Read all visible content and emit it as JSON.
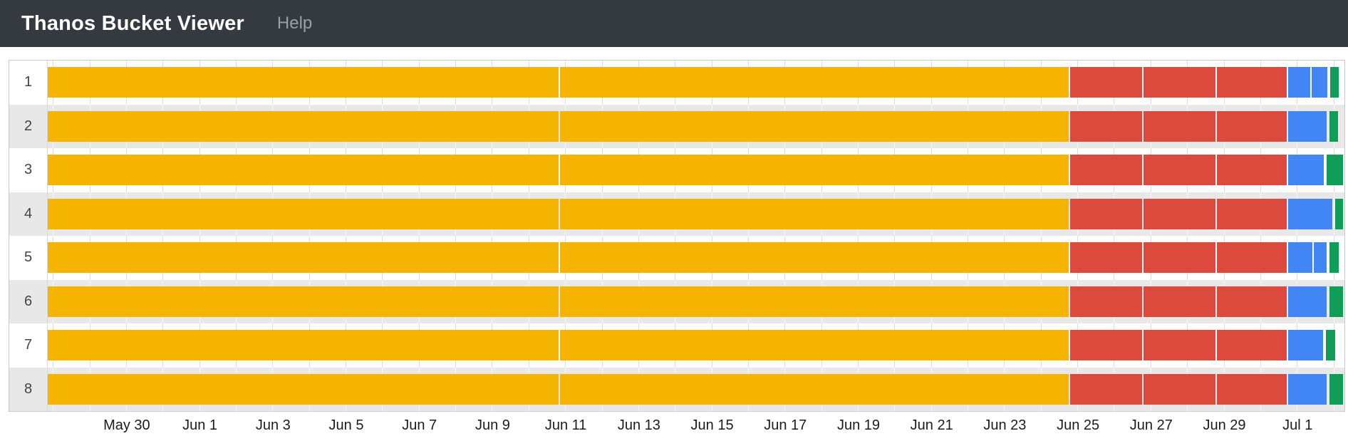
{
  "header": {
    "title": "Thanos Bucket Viewer",
    "help_label": "Help"
  },
  "colors": {
    "header_bg": "#343a40",
    "brand_text": "#ffffff",
    "help_text": "#9aa0a6",
    "row_bg": "#ffffff",
    "row_alt_bg": "#e8e8e8",
    "grid_on_light": "#dcdcdc",
    "grid_on_dark": "#f7f7f7",
    "panel_border": "#c9c9c9",
    "palette": {
      "amber": "#f4b400",
      "red": "#dc4a3d",
      "blue": "#4285f4",
      "green": "#0f9d58"
    }
  },
  "chart_data": {
    "type": "timeline",
    "title": "",
    "xlabel": "",
    "ylabel": "",
    "legend": null,
    "grid": true,
    "x_axis": {
      "unit": "days",
      "domain_days": [
        0,
        35.44
      ],
      "tick_interval_days": 2,
      "grid_interval_days": 1,
      "grid_start_day": 0.14,
      "ticks": [
        {
          "label": "May 30",
          "day": 2.14
        },
        {
          "label": "Jun 1",
          "day": 4.14
        },
        {
          "label": "Jun 3",
          "day": 6.14
        },
        {
          "label": "Jun 5",
          "day": 8.14
        },
        {
          "label": "Jun 7",
          "day": 10.14
        },
        {
          "label": "Jun 9",
          "day": 12.14
        },
        {
          "label": "Jun 11",
          "day": 14.14
        },
        {
          "label": "Jun 13",
          "day": 16.14
        },
        {
          "label": "Jun 15",
          "day": 18.14
        },
        {
          "label": "Jun 17",
          "day": 20.14
        },
        {
          "label": "Jun 19",
          "day": 22.14
        },
        {
          "label": "Jun 21",
          "day": 24.14
        },
        {
          "label": "Jun 23",
          "day": 26.14
        },
        {
          "label": "Jun 25",
          "day": 28.14
        },
        {
          "label": "Jun 27",
          "day": 30.14
        },
        {
          "label": "Jun 29",
          "day": 32.14
        },
        {
          "label": "Jul 1",
          "day": 34.14
        }
      ]
    },
    "rows": [
      {
        "label": "1",
        "segments": [
          {
            "start": 0,
            "end": 14.0,
            "color": "amber"
          },
          {
            "start": 14.0,
            "end": 27.95,
            "color": "amber"
          },
          {
            "start": 27.95,
            "end": 29.95,
            "color": "red"
          },
          {
            "start": 29.95,
            "end": 31.95,
            "color": "red"
          },
          {
            "start": 31.95,
            "end": 33.9,
            "color": "red"
          },
          {
            "start": 33.9,
            "end": 34.55,
            "color": "blue"
          },
          {
            "start": 34.55,
            "end": 35.02,
            "color": "blue"
          },
          {
            "start": 35.06,
            "end": 35.32,
            "color": "green"
          }
        ]
      },
      {
        "label": "2",
        "segments": [
          {
            "start": 0,
            "end": 14.0,
            "color": "amber"
          },
          {
            "start": 14.0,
            "end": 27.95,
            "color": "amber"
          },
          {
            "start": 27.95,
            "end": 29.95,
            "color": "red"
          },
          {
            "start": 29.95,
            "end": 31.95,
            "color": "red"
          },
          {
            "start": 31.95,
            "end": 33.9,
            "color": "red"
          },
          {
            "start": 33.9,
            "end": 35.0,
            "color": "blue"
          },
          {
            "start": 35.04,
            "end": 35.3,
            "color": "green"
          }
        ]
      },
      {
        "label": "3",
        "segments": [
          {
            "start": 0,
            "end": 14.0,
            "color": "amber"
          },
          {
            "start": 14.0,
            "end": 27.95,
            "color": "amber"
          },
          {
            "start": 27.95,
            "end": 29.95,
            "color": "red"
          },
          {
            "start": 29.95,
            "end": 31.95,
            "color": "red"
          },
          {
            "start": 31.95,
            "end": 33.9,
            "color": "red"
          },
          {
            "start": 33.9,
            "end": 34.92,
            "color": "blue"
          },
          {
            "start": 34.96,
            "end": 35.44,
            "color": "green"
          }
        ]
      },
      {
        "label": "4",
        "segments": [
          {
            "start": 0,
            "end": 14.0,
            "color": "amber"
          },
          {
            "start": 14.0,
            "end": 27.95,
            "color": "amber"
          },
          {
            "start": 27.95,
            "end": 29.95,
            "color": "red"
          },
          {
            "start": 29.95,
            "end": 31.95,
            "color": "red"
          },
          {
            "start": 31.95,
            "end": 33.9,
            "color": "red"
          },
          {
            "start": 33.9,
            "end": 35.14,
            "color": "blue"
          },
          {
            "start": 35.18,
            "end": 35.44,
            "color": "green"
          }
        ]
      },
      {
        "label": "5",
        "segments": [
          {
            "start": 0,
            "end": 14.0,
            "color": "amber"
          },
          {
            "start": 14.0,
            "end": 27.95,
            "color": "amber"
          },
          {
            "start": 27.95,
            "end": 29.95,
            "color": "red"
          },
          {
            "start": 29.95,
            "end": 31.95,
            "color": "red"
          },
          {
            "start": 31.95,
            "end": 33.9,
            "color": "red"
          },
          {
            "start": 33.9,
            "end": 34.6,
            "color": "blue"
          },
          {
            "start": 34.6,
            "end": 35.0,
            "color": "blue"
          },
          {
            "start": 35.04,
            "end": 35.32,
            "color": "green"
          }
        ]
      },
      {
        "label": "6",
        "segments": [
          {
            "start": 0,
            "end": 14.0,
            "color": "amber"
          },
          {
            "start": 14.0,
            "end": 27.95,
            "color": "amber"
          },
          {
            "start": 27.95,
            "end": 29.95,
            "color": "red"
          },
          {
            "start": 29.95,
            "end": 31.95,
            "color": "red"
          },
          {
            "start": 31.95,
            "end": 33.9,
            "color": "red"
          },
          {
            "start": 33.9,
            "end": 35.0,
            "color": "blue"
          },
          {
            "start": 35.04,
            "end": 35.44,
            "color": "green"
          }
        ]
      },
      {
        "label": "7",
        "segments": [
          {
            "start": 0,
            "end": 14.0,
            "color": "amber"
          },
          {
            "start": 14.0,
            "end": 27.95,
            "color": "amber"
          },
          {
            "start": 27.95,
            "end": 29.95,
            "color": "red"
          },
          {
            "start": 29.95,
            "end": 31.95,
            "color": "red"
          },
          {
            "start": 31.95,
            "end": 33.9,
            "color": "red"
          },
          {
            "start": 33.9,
            "end": 34.9,
            "color": "blue"
          },
          {
            "start": 34.94,
            "end": 35.22,
            "color": "green"
          }
        ]
      },
      {
        "label": "8",
        "segments": [
          {
            "start": 0,
            "end": 14.0,
            "color": "amber"
          },
          {
            "start": 14.0,
            "end": 27.95,
            "color": "amber"
          },
          {
            "start": 27.95,
            "end": 29.95,
            "color": "red"
          },
          {
            "start": 29.95,
            "end": 31.95,
            "color": "red"
          },
          {
            "start": 31.95,
            "end": 33.9,
            "color": "red"
          },
          {
            "start": 33.9,
            "end": 35.0,
            "color": "blue"
          },
          {
            "start": 35.04,
            "end": 35.44,
            "color": "green"
          }
        ]
      }
    ]
  }
}
